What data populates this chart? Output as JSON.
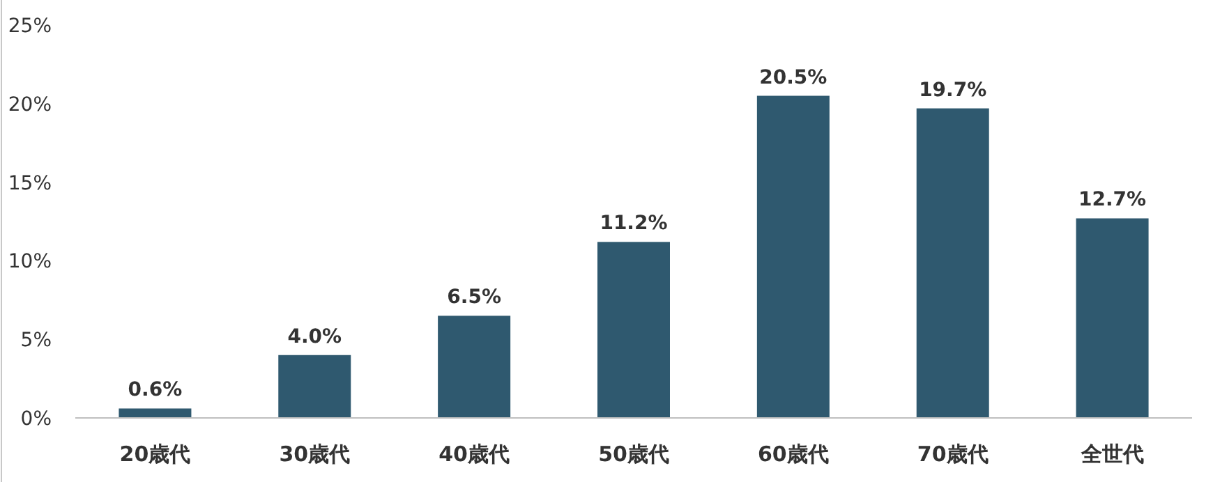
{
  "chart_data": {
    "type": "bar",
    "categories": [
      "20歳代",
      "30歳代",
      "40歳代",
      "50歳代",
      "60歳代",
      "70歳代",
      "全世代"
    ],
    "values": [
      0.6,
      4.0,
      6.5,
      11.2,
      20.5,
      19.7,
      12.7
    ],
    "value_labels": [
      "0.6%",
      "4.0%",
      "6.5%",
      "11.2%",
      "20.5%",
      "19.7%",
      "12.7%"
    ],
    "color": "#2f596f",
    "ylim": [
      0,
      25
    ],
    "yticks": [
      {
        "value": 0,
        "label": "0%"
      },
      {
        "value": 5,
        "label": "5%"
      },
      {
        "value": 10,
        "label": "10%"
      },
      {
        "value": 15,
        "label": "15%"
      },
      {
        "value": 20,
        "label": "20%"
      },
      {
        "value": 25,
        "label": "25%"
      }
    ],
    "grid": false
  }
}
